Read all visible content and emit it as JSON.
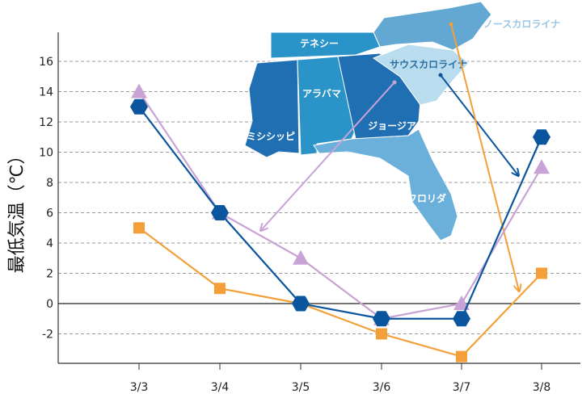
{
  "chart_data": {
    "type": "line",
    "ylabel": "最低気温（℃）",
    "categories": [
      "3/3",
      "3/4",
      "3/5",
      "3/6",
      "3/7",
      "3/8"
    ],
    "ylim": [
      -4,
      18
    ],
    "yticks": [
      -2,
      0,
      2,
      4,
      6,
      8,
      10,
      12,
      14,
      16
    ],
    "grid": "horizontal-dashed",
    "series": [
      {
        "values": [
          13,
          6,
          0,
          -1,
          -1,
          11
        ],
        "color": "#0b559f",
        "marker": "hexagon"
      },
      {
        "values": [
          14,
          6,
          3,
          -1,
          0,
          9
        ],
        "color": "#c9a2d6",
        "marker": "triangle"
      },
      {
        "values": [
          5,
          1,
          0,
          -2,
          -3.5,
          2
        ],
        "color": "#f4a03a",
        "marker": "square"
      }
    ],
    "map": {
      "states": [
        {
          "label": "テネシー",
          "color": "#2a93c8"
        },
        {
          "label": "ノースカロライナ",
          "color": "#63a8d3"
        },
        {
          "label": "サウスカロライナ",
          "color": "#b9dcee"
        },
        {
          "label": "ミシシッピ",
          "color": "#1f6fb2"
        },
        {
          "label": "アラバマ",
          "color": "#2a93c8"
        },
        {
          "label": "ジョージア",
          "color": "#1f6fb2"
        },
        {
          "label": "フロリダ",
          "color": "#6ab0da"
        }
      ]
    }
  }
}
